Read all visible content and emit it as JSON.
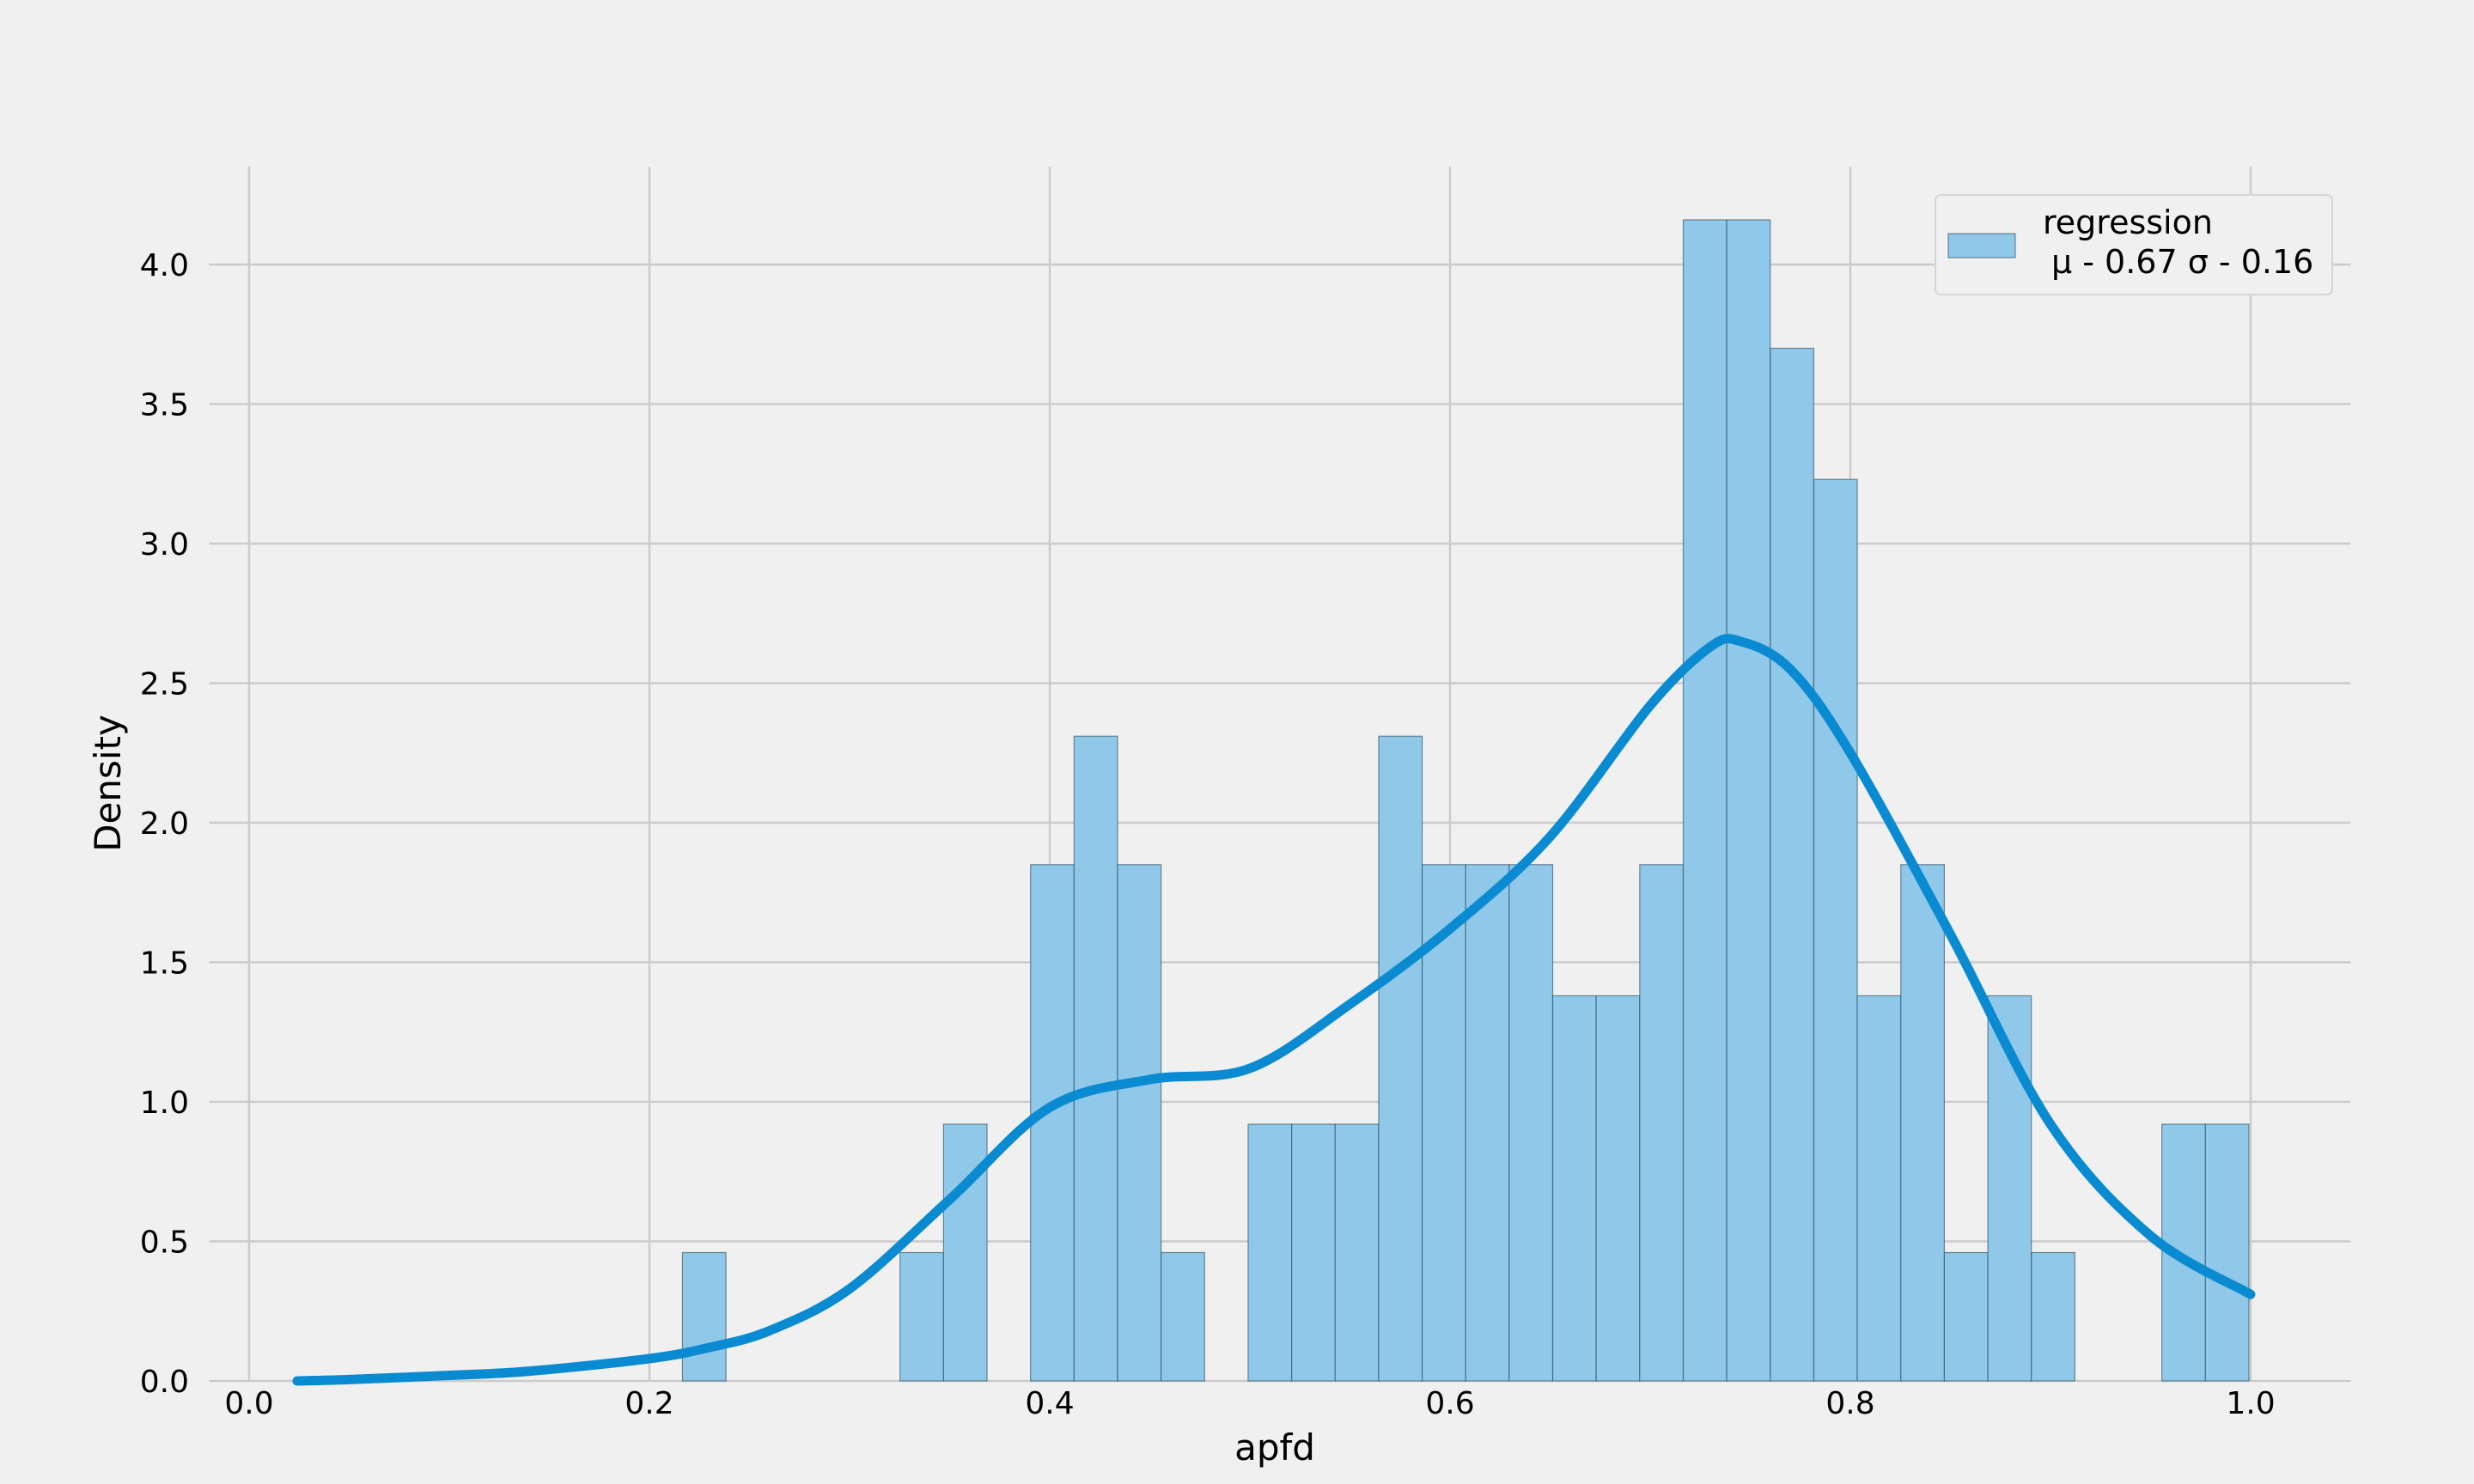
{
  "chart_data": {
    "type": "bar",
    "xlabel": "apfd",
    "ylabel": "Density",
    "xlim": [
      -0.02,
      1.05
    ],
    "ylim": [
      0,
      4.35
    ],
    "x_ticks": [
      "0.0",
      "0.2",
      "0.4",
      "0.6",
      "0.8",
      "1.0"
    ],
    "y_ticks": [
      "0.0",
      "0.5",
      "1.0",
      "1.5",
      "2.0",
      "2.5",
      "3.0",
      "3.5",
      "4.0"
    ],
    "grid": true,
    "legend_position": "top-right",
    "legend": {
      "name": "regression",
      "stats_text": "μ - 0.67 σ - 0.16"
    },
    "bins": {
      "start": 0.2165,
      "width": 0.02174,
      "values": [
        0.46,
        0,
        0,
        0,
        0,
        0.46,
        0.92,
        0,
        1.85,
        2.31,
        1.85,
        0.46,
        0,
        0.92,
        0.92,
        0.92,
        2.31,
        1.85,
        1.85,
        1.85,
        1.38,
        1.38,
        1.85,
        4.16,
        4.16,
        3.7,
        3.23,
        1.38,
        1.85,
        0.46,
        1.38,
        0.46,
        0,
        0,
        0.92,
        0.92
      ]
    },
    "kde": {
      "x": [
        0.024,
        0.05,
        0.1,
        0.14,
        0.2,
        0.23,
        0.26,
        0.3,
        0.35,
        0.4,
        0.45,
        0.5,
        0.55,
        0.6,
        0.65,
        0.7,
        0.73,
        0.745,
        0.77,
        0.8,
        0.85,
        0.9,
        0.95,
        1.0
      ],
      "y": [
        0.0,
        0.005,
        0.02,
        0.035,
        0.08,
        0.12,
        0.18,
        0.33,
        0.65,
        0.98,
        1.08,
        1.12,
        1.35,
        1.62,
        1.95,
        2.42,
        2.63,
        2.65,
        2.55,
        2.25,
        1.6,
        0.92,
        0.52,
        0.31
      ]
    },
    "colors": {
      "bar_fill": "#8fc8e8",
      "kde_line": "#0a8bd1",
      "background": "#f0f0f0",
      "grid": "#cbcbcb"
    }
  }
}
